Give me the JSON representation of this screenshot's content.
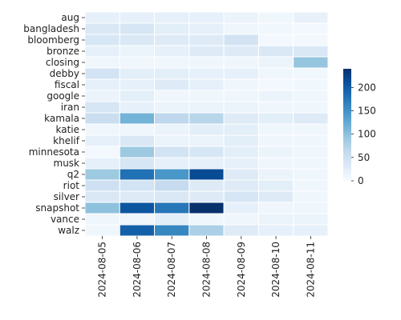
{
  "chart_data": {
    "type": "heatmap",
    "title": "",
    "xlabel": "",
    "ylabel": "",
    "x_categories": [
      "2024-08-05",
      "2024-08-06",
      "2024-08-07",
      "2024-08-08",
      "2024-08-09",
      "2024-08-10",
      "2024-08-11"
    ],
    "y_categories": [
      "aug",
      "bangladesh",
      "bloomberg",
      "bronze",
      "closing",
      "debby",
      "fiscal",
      "google",
      "iran",
      "kamala",
      "katie",
      "khelif",
      "minnesota",
      "musk",
      "q2",
      "riot",
      "silver",
      "snapshot",
      "vance",
      "walz"
    ],
    "values": [
      [
        20,
        20,
        20,
        20,
        15,
        10,
        18
      ],
      [
        35,
        40,
        25,
        20,
        10,
        8,
        5
      ],
      [
        40,
        35,
        30,
        30,
        45,
        5,
        5
      ],
      [
        20,
        15,
        20,
        30,
        30,
        35,
        35
      ],
      [
        10,
        10,
        10,
        10,
        10,
        15,
        95
      ],
      [
        45,
        25,
        25,
        20,
        20,
        10,
        8
      ],
      [
        20,
        20,
        30,
        20,
        10,
        5,
        8
      ],
      [
        15,
        25,
        10,
        10,
        10,
        15,
        10
      ],
      [
        40,
        20,
        15,
        15,
        15,
        10,
        10
      ],
      [
        55,
        115,
        65,
        70,
        30,
        25,
        30
      ],
      [
        10,
        10,
        15,
        25,
        25,
        10,
        10
      ],
      [
        20,
        35,
        15,
        15,
        25,
        10,
        10
      ],
      [
        5,
        90,
        45,
        40,
        25,
        15,
        10
      ],
      [
        20,
        40,
        20,
        20,
        20,
        10,
        10
      ],
      [
        90,
        180,
        145,
        215,
        30,
        15,
        10
      ],
      [
        50,
        45,
        60,
        30,
        30,
        25,
        10
      ],
      [
        35,
        30,
        35,
        30,
        40,
        30,
        10
      ],
      [
        100,
        205,
        175,
        240,
        20,
        10,
        10
      ],
      [
        10,
        10,
        25,
        10,
        10,
        15,
        15
      ],
      [
        10,
        195,
        160,
        80,
        30,
        20,
        20
      ]
    ],
    "value_range": [
      0,
      240
    ],
    "colormap": [
      "#f7fbff",
      "#08306b"
    ],
    "colorbar": {
      "ticks": [
        0,
        50,
        100,
        150,
        200
      ]
    },
    "grid": false
  }
}
